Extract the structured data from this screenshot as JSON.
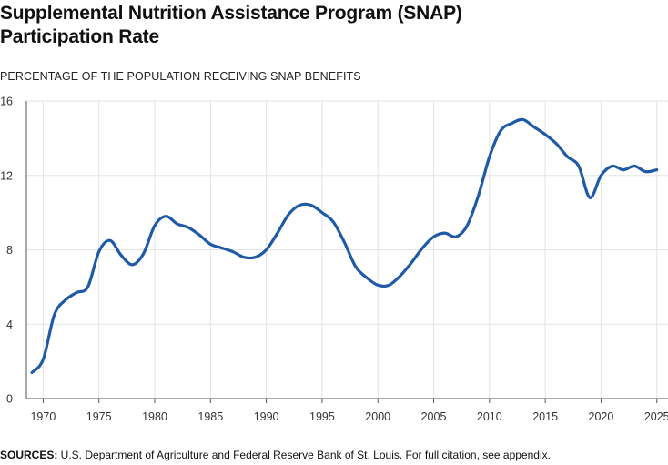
{
  "header": {
    "title_line1": "Supplemental Nutrition Assistance Program (SNAP)",
    "title_line2": "Participation Rate"
  },
  "footer": {
    "sources_label": "SOURCES:",
    "sources_text": " U.S. Department of Agriculture and Federal Reserve Bank of St. Louis. For full citation, see appendix."
  },
  "colors": {
    "line": "#1f5aa6",
    "grid": "#e3e3e3",
    "axis": "#555555"
  },
  "chart_data": {
    "type": "line",
    "title": "Supplemental Nutrition Assistance Program (SNAP) Participation Rate",
    "ylabel": "PERCENTAGE OF THE POPULATION RECEIVING SNAP BENEFITS",
    "xlabel": "",
    "xlim": [
      1968.5,
      2026
    ],
    "ylim": [
      0,
      16
    ],
    "yticks": [
      0,
      4,
      8,
      12,
      16
    ],
    "xticks": [
      1970,
      1975,
      1980,
      1985,
      1990,
      1995,
      2000,
      2005,
      2010,
      2015,
      2020,
      2025
    ],
    "grid": true,
    "x": [
      1969,
      1970,
      1971,
      1972,
      1973,
      1974,
      1975,
      1976,
      1977,
      1978,
      1979,
      1980,
      1981,
      1982,
      1983,
      1984,
      1985,
      1986,
      1987,
      1988,
      1989,
      1990,
      1991,
      1992,
      1993,
      1994,
      1995,
      1996,
      1997,
      1998,
      1999,
      2000,
      2001,
      2002,
      2003,
      2004,
      2005,
      2006,
      2007,
      2008,
      2009,
      2010,
      2011,
      2012,
      2013,
      2014,
      2015,
      2016,
      2017,
      2018,
      2019,
      2020,
      2021,
      2022,
      2023,
      2024,
      2025
    ],
    "series": [
      {
        "values": [
          1.4,
          2.1,
          4.5,
          5.3,
          5.7,
          6.0,
          7.9,
          8.5,
          7.7,
          7.2,
          7.8,
          9.3,
          9.8,
          9.4,
          9.2,
          8.8,
          8.3,
          8.1,
          7.9,
          7.6,
          7.6,
          8.0,
          8.9,
          9.9,
          10.4,
          10.4,
          10.0,
          9.5,
          8.4,
          7.1,
          6.5,
          6.1,
          6.1,
          6.6,
          7.3,
          8.1,
          8.7,
          8.9,
          8.7,
          9.3,
          10.9,
          13.0,
          14.4,
          14.8,
          15.0,
          14.6,
          14.2,
          13.7,
          13.0,
          12.5,
          10.8,
          12.0,
          12.5,
          12.3,
          12.5,
          12.2,
          12.3
        ]
      }
    ]
  }
}
